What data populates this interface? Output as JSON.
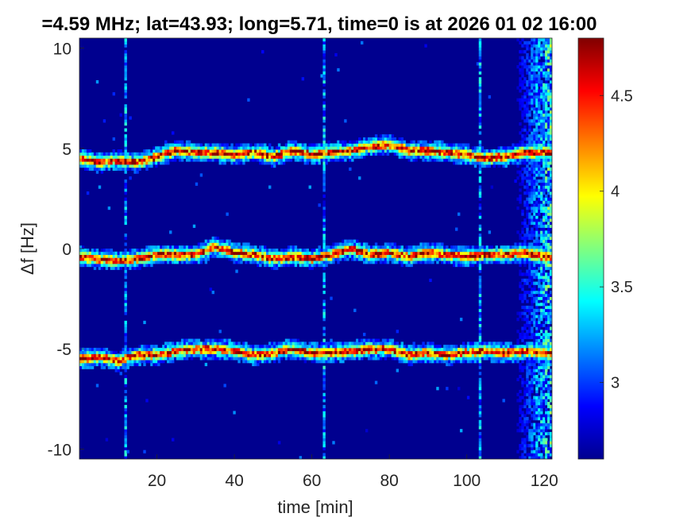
{
  "chart_data": {
    "type": "heatmap",
    "title": "=4.59 MHz;  lat=43.93; long=5.71, time=0 is at 2026 01 02 16:00",
    "xlabel": "time [min]",
    "ylabel": "Δf [Hz]",
    "xlim": [
      0,
      122
    ],
    "ylim": [
      -10.5,
      10.5
    ],
    "xticks": [
      20,
      40,
      60,
      80,
      100,
      120
    ],
    "yticks": [
      -10,
      -5,
      0,
      5,
      10
    ],
    "grid": false,
    "colormap": "jet",
    "colorbar": {
      "range": [
        2.6,
        4.8
      ],
      "ticks": [
        3,
        3.5,
        4,
        4.5
      ]
    },
    "background_level": 2.65,
    "series": [
      {
        "x": [
          0,
          5,
          10,
          15,
          20,
          25,
          30,
          35,
          40,
          45,
          50,
          55,
          60,
          65,
          70,
          75,
          80,
          85,
          90,
          95,
          100,
          105,
          110,
          115,
          120
        ],
        "y": [
          4.5,
          4.3,
          4.4,
          4.3,
          4.6,
          4.9,
          4.8,
          4.8,
          4.7,
          4.8,
          4.6,
          4.9,
          4.7,
          4.8,
          4.9,
          5.1,
          5.2,
          4.9,
          4.9,
          4.8,
          4.7,
          4.5,
          4.6,
          4.8,
          4.8
        ]
      },
      {
        "x": [
          0,
          5,
          10,
          15,
          20,
          25,
          30,
          35,
          40,
          45,
          50,
          55,
          60,
          65,
          70,
          75,
          80,
          85,
          90,
          95,
          100,
          105,
          110,
          115,
          120
        ],
        "y": [
          -0.4,
          -0.5,
          -0.6,
          -0.5,
          -0.3,
          -0.3,
          -0.3,
          0.1,
          -0.2,
          -0.3,
          -0.5,
          -0.4,
          -0.5,
          -0.3,
          0.0,
          -0.3,
          -0.2,
          -0.4,
          -0.2,
          -0.3,
          -0.4,
          -0.3,
          -0.3,
          -0.2,
          -0.4
        ]
      },
      {
        "x": [
          0,
          5,
          10,
          15,
          20,
          25,
          30,
          35,
          40,
          45,
          50,
          55,
          60,
          65,
          70,
          75,
          80,
          85,
          90,
          95,
          100,
          105,
          110,
          115,
          120
        ],
        "y": [
          -5.5,
          -5.4,
          -5.6,
          -5.3,
          -5.3,
          -5.1,
          -5.0,
          -5.0,
          -5.1,
          -5.3,
          -5.2,
          -5.0,
          -5.2,
          -5.2,
          -5.1,
          -5.0,
          -5.0,
          -5.3,
          -5.2,
          -5.3,
          -5.2,
          -5.1,
          -5.2,
          -5.1,
          -5.2
        ]
      }
    ]
  }
}
